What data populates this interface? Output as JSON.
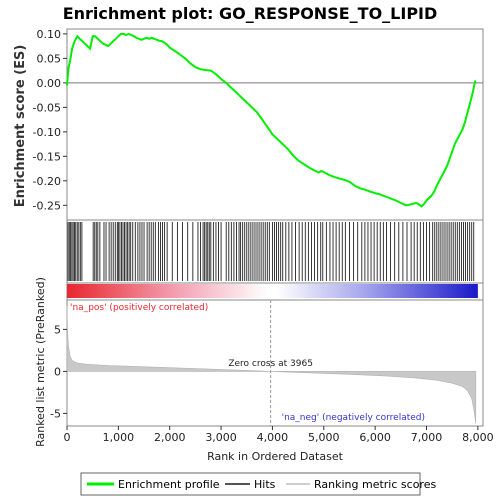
{
  "chart_data": {
    "type": "line",
    "title": "Enrichment plot: GO_RESPONSE_TO_LIPID",
    "top_panel": {
      "ylabel": "Enrichment score (ES)",
      "ylim": [
        -0.28,
        0.11
      ],
      "yticks": [
        0.1,
        0.05,
        0.0,
        -0.05,
        -0.1,
        -0.15,
        -0.2,
        -0.25
      ],
      "ytick_labels": [
        "0.10",
        "0.05",
        "0.00",
        "-0.05",
        "-0.10",
        "-0.15",
        "-0.20",
        "-0.25"
      ],
      "series": [
        {
          "name": "Enrichment profile",
          "color": "#00ee00",
          "x": [
            0,
            30,
            60,
            100,
            150,
            200,
            250,
            300,
            350,
            400,
            450,
            500,
            550,
            600,
            650,
            700,
            750,
            800,
            850,
            900,
            950,
            1000,
            1050,
            1100,
            1150,
            1200,
            1250,
            1300,
            1350,
            1400,
            1450,
            1500,
            1550,
            1600,
            1650,
            1700,
            1750,
            1800,
            1850,
            1900,
            1950,
            2000,
            2100,
            2200,
            2300,
            2400,
            2500,
            2600,
            2700,
            2800,
            2900,
            3000,
            3100,
            3200,
            3300,
            3400,
            3500,
            3600,
            3700,
            3800,
            3900,
            4000,
            4100,
            4200,
            4300,
            4400,
            4500,
            4600,
            4700,
            4800,
            4900,
            4950,
            5000,
            5100,
            5200,
            5300,
            5400,
            5500,
            5600,
            5700,
            5800,
            5900,
            6000,
            6100,
            6200,
            6300,
            6400,
            6500,
            6600,
            6700,
            6800,
            6850,
            6900,
            6950,
            7000,
            7050,
            7100,
            7150,
            7200,
            7250,
            7300,
            7350,
            7400,
            7450,
            7500,
            7550,
            7600,
            7650,
            7700,
            7750,
            7800,
            7850,
            7900,
            7950
          ],
          "values": [
            -0.005,
            0.03,
            0.045,
            0.07,
            0.085,
            0.095,
            0.09,
            0.085,
            0.08,
            0.075,
            0.07,
            0.095,
            0.095,
            0.09,
            0.085,
            0.08,
            0.078,
            0.075,
            0.08,
            0.085,
            0.09,
            0.095,
            0.1,
            0.1,
            0.098,
            0.1,
            0.098,
            0.095,
            0.092,
            0.09,
            0.088,
            0.09,
            0.092,
            0.09,
            0.092,
            0.09,
            0.088,
            0.086,
            0.085,
            0.082,
            0.078,
            0.072,
            0.065,
            0.058,
            0.05,
            0.04,
            0.032,
            0.028,
            0.026,
            0.025,
            0.018,
            0.008,
            0.0,
            -0.01,
            -0.02,
            -0.03,
            -0.04,
            -0.05,
            -0.06,
            -0.075,
            -0.09,
            -0.105,
            -0.115,
            -0.125,
            -0.135,
            -0.148,
            -0.158,
            -0.165,
            -0.172,
            -0.178,
            -0.183,
            -0.18,
            -0.182,
            -0.188,
            -0.192,
            -0.195,
            -0.198,
            -0.202,
            -0.21,
            -0.215,
            -0.218,
            -0.222,
            -0.225,
            -0.228,
            -0.232,
            -0.236,
            -0.24,
            -0.245,
            -0.25,
            -0.248,
            -0.245,
            -0.248,
            -0.252,
            -0.248,
            -0.24,
            -0.235,
            -0.23,
            -0.222,
            -0.21,
            -0.2,
            -0.19,
            -0.18,
            -0.17,
            -0.155,
            -0.14,
            -0.125,
            -0.115,
            -0.105,
            -0.095,
            -0.08,
            -0.06,
            -0.04,
            -0.02,
            0.005
          ]
        }
      ]
    },
    "middle_panel": {
      "legend_name": "Hits",
      "hits": [
        20,
        45,
        70,
        95,
        120,
        145,
        170,
        200,
        230,
        260,
        290,
        510,
        540,
        570,
        600,
        640,
        720,
        760,
        820,
        860,
        900,
        940,
        980,
        1000,
        1030,
        1060,
        1090,
        1120,
        1150,
        1180,
        1210,
        1240,
        1280,
        1330,
        1380,
        1420,
        1460,
        1500,
        1560,
        1600,
        1640,
        1680,
        1720,
        1780,
        1820,
        1860,
        1900,
        1950,
        2050,
        2150,
        2250,
        2350,
        2450,
        2550,
        2600,
        2650,
        2680,
        2710,
        2740,
        2770,
        2800,
        2850,
        2900,
        2950,
        3000,
        3100,
        3150,
        3200,
        3250,
        3300,
        3350,
        3380,
        3420,
        3460,
        3500,
        3540,
        3580,
        3620,
        3660,
        3700,
        3740,
        3780,
        3820,
        3860,
        3900,
        3940,
        4000,
        4040,
        4080,
        4120,
        4160,
        4200,
        4260,
        4320,
        4380,
        4450,
        4520,
        4580,
        4640,
        4700,
        4760,
        4820,
        4880,
        4940,
        4980,
        5050,
        5120,
        5180,
        5240,
        5300,
        5360,
        5420,
        5500,
        5580,
        5660,
        5740,
        5800,
        5860,
        5920,
        5980,
        6040,
        6100,
        6160,
        6220,
        6300,
        6380,
        6460,
        6540,
        6620,
        6700,
        6760,
        6820,
        6880,
        6940,
        7000,
        7060,
        7120,
        7160,
        7200,
        7240,
        7280,
        7320,
        7360,
        7400,
        7440,
        7480,
        7520,
        7560,
        7600,
        7640,
        7680,
        7720,
        7760,
        7800,
        7840,
        7880,
        7920
      ]
    },
    "color_bar": {
      "pos_label": "'na_pos' (positively correlated)",
      "neg_label": "'na_neg' (negatively correlated)",
      "pos_color": "#e8272e",
      "mid_color": "#ffffff",
      "neg_color": "#1a19c8"
    },
    "bottom_panel": {
      "ylabel": "Ranked list metric (PreRanked)",
      "ylim": [
        -6.5,
        8.5
      ],
      "yticks": [
        5,
        0,
        -5
      ],
      "ytick_labels": [
        "5",
        "0",
        "-5"
      ],
      "zero_cross_label": "Zero cross at 3965",
      "zero_cross": 3965,
      "legend_name": "Ranking metric scores",
      "metric_profile": {
        "x": [
          0,
          10,
          30,
          60,
          100,
          200,
          400,
          800,
          1500,
          2500,
          3500,
          3965,
          4500,
          5500,
          6200,
          6800,
          7200,
          7500,
          7700,
          7800,
          7880,
          7920,
          7960
        ],
        "values": [
          7.8,
          5.0,
          3.0,
          1.8,
          1.3,
          1.0,
          0.85,
          0.7,
          0.55,
          0.35,
          0.12,
          0.0,
          -0.12,
          -0.35,
          -0.55,
          -0.8,
          -1.05,
          -1.4,
          -1.8,
          -2.3,
          -3.2,
          -4.5,
          -6.2
        ]
      }
    },
    "xaxis": {
      "label": "Rank in Ordered Dataset",
      "xlim": [
        0,
        8100
      ],
      "xticks": [
        0,
        1000,
        2000,
        3000,
        4000,
        5000,
        6000,
        7000,
        8000
      ],
      "xtick_labels": [
        "0",
        "1,000",
        "2,000",
        "3,000",
        "4,000",
        "5,000",
        "6,000",
        "7,000",
        "8,000"
      ]
    },
    "legend": {
      "items": [
        "Enrichment profile",
        "Hits",
        "Ranking metric scores"
      ],
      "placement": "bottom"
    }
  }
}
